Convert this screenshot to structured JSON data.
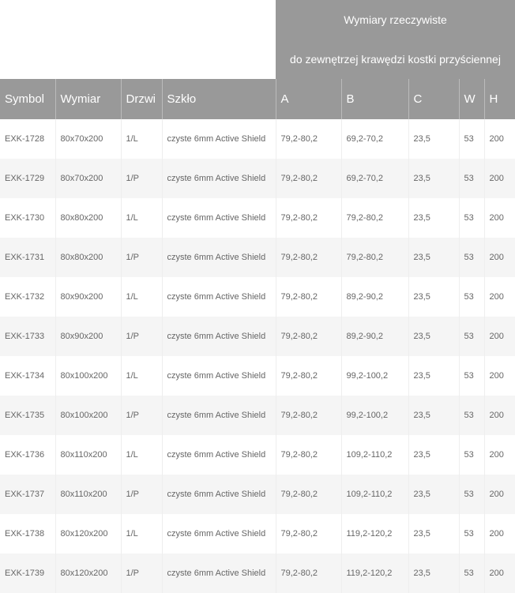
{
  "group_header": {
    "line1": "Wymiary rzeczywiste",
    "line2": "do zewnętrzej krawędzi kostki przyściennej"
  },
  "columns": [
    "Symbol",
    "Wymiar",
    "Drzwi",
    "Szkło",
    "A",
    "B",
    "C",
    "W",
    "H"
  ],
  "rows": [
    [
      "EXK-1728",
      "80x70x200",
      "1/L",
      "czyste 6mm Active Shield",
      "79,2-80,2",
      "69,2-70,2",
      "23,5",
      "53",
      "200"
    ],
    [
      "EXK-1729",
      "80x70x200",
      "1/P",
      "czyste 6mm Active Shield",
      "79,2-80,2",
      "69,2-70,2",
      "23,5",
      "53",
      "200"
    ],
    [
      "EXK-1730",
      "80x80x200",
      "1/L",
      "czyste 6mm Active Shield",
      "79,2-80,2",
      "79,2-80,2",
      "23,5",
      "53",
      "200"
    ],
    [
      "EXK-1731",
      "80x80x200",
      "1/P",
      "czyste 6mm Active Shield",
      "79,2-80,2",
      "79,2-80,2",
      "23,5",
      "53",
      "200"
    ],
    [
      "EXK-1732",
      "80x90x200",
      "1/L",
      "czyste 6mm Active Shield",
      "79,2-80,2",
      "89,2-90,2",
      "23,5",
      "53",
      "200"
    ],
    [
      "EXK-1733",
      "80x90x200",
      "1/P",
      "czyste 6mm Active Shield",
      "79,2-80,2",
      "89,2-90,2",
      "23,5",
      "53",
      "200"
    ],
    [
      "EXK-1734",
      "80x100x200",
      "1/L",
      "czyste 6mm Active Shield",
      "79,2-80,2",
      "99,2-100,2",
      "23,5",
      "53",
      "200"
    ],
    [
      "EXK-1735",
      "80x100x200",
      "1/P",
      "czyste 6mm Active Shield",
      "79,2-80,2",
      "99,2-100,2",
      "23,5",
      "53",
      "200"
    ],
    [
      "EXK-1736",
      "80x110x200",
      "1/L",
      "czyste 6mm Active Shield",
      "79,2-80,2",
      "109,2-110,2",
      "23,5",
      "53",
      "200"
    ],
    [
      "EXK-1737",
      "80x110x200",
      "1/P",
      "czyste 6mm Active Shield",
      "79,2-80,2",
      "109,2-110,2",
      "23,5",
      "53",
      "200"
    ],
    [
      "EXK-1738",
      "80x120x200",
      "1/L",
      "czyste 6mm Active Shield",
      "79,2-80,2",
      "119,2-120,2",
      "23,5",
      "53",
      "200"
    ],
    [
      "EXK-1739",
      "80x120x200",
      "1/P",
      "czyste 6mm Active Shield",
      "79,2-80,2",
      "119,2-120,2",
      "23,5",
      "53",
      "200"
    ]
  ]
}
